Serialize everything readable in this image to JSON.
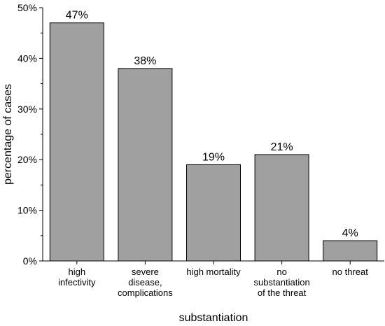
{
  "chart_data": {
    "type": "bar",
    "title": "",
    "xlabel": "substantiation",
    "ylabel": "percentage of cases",
    "ylim": [
      0,
      50
    ],
    "y_tick_labels": [
      "0%",
      "10%",
      "20%",
      "30%",
      "40%",
      "50%"
    ],
    "y_tick_values": [
      0,
      10,
      20,
      30,
      40,
      50
    ],
    "categories": [
      [
        "high",
        "infectivity"
      ],
      [
        "severe",
        "disease,",
        "complications"
      ],
      [
        "high mortality"
      ],
      [
        "no",
        "substantiation",
        "of the threat"
      ],
      [
        "no threat"
      ]
    ],
    "values": [
      47,
      38,
      19,
      21,
      4
    ],
    "data_labels": [
      "47%",
      "38%",
      "19%",
      "21%",
      "4%"
    ],
    "grid": false,
    "legend": "none",
    "bar_color": "#a0a0a0",
    "edge_color": "#000000"
  }
}
